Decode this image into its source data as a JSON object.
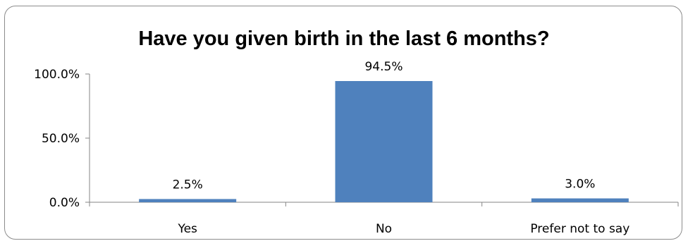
{
  "chart_data": {
    "type": "bar",
    "title": "Have you given birth in the last 6 months?",
    "categories": [
      "Yes",
      "No",
      "Prefer not to say"
    ],
    "values": [
      2.5,
      94.5,
      3.0
    ],
    "data_labels": [
      "2.5%",
      "94.5%",
      "3.0%"
    ],
    "ylim": [
      0,
      100
    ],
    "yticks": [
      0,
      50,
      100
    ],
    "ytick_labels": [
      "0.0%",
      "50.0%",
      "100.0%"
    ],
    "grid": false,
    "legend": "none",
    "bar_color": "#4f81bd"
  }
}
